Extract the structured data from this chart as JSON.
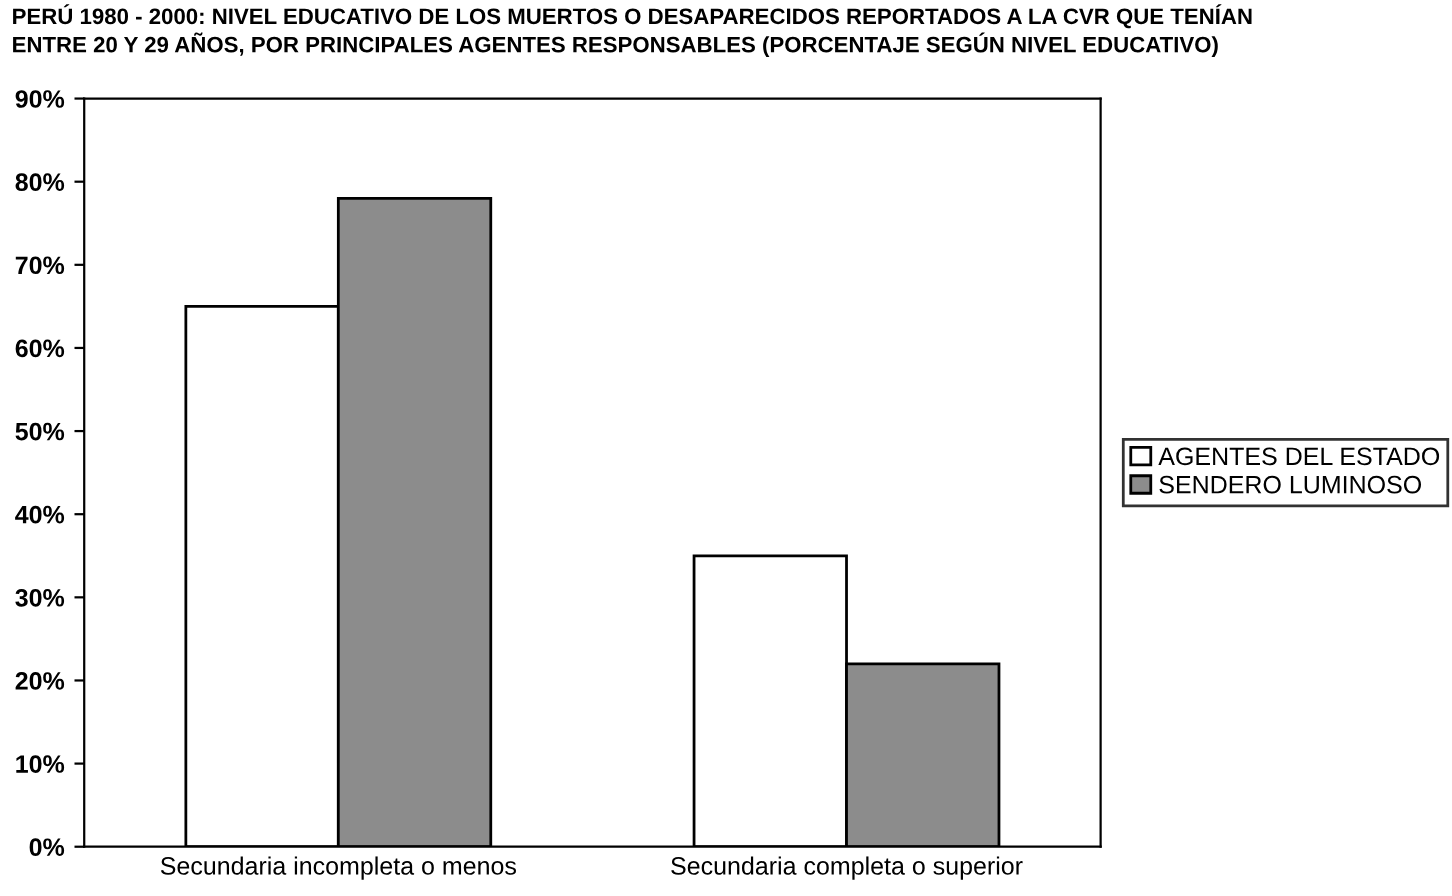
{
  "chart_data": {
    "type": "bar",
    "title": "PERÚ 1980 - 2000: NIVEL EDUCATIVO DE LOS MUERTOS O DESAPARECIDOS REPORTADOS A LA CVR QUE TENÍAN\nENTRE 20 Y 29 AÑOS, POR PRINCIPALES AGENTES RESPONSABLES (PORCENTAJE SEGÚN NIVEL EDUCATIVO)",
    "categories": [
      "Secundaria incompleta o menos",
      "Secundaria completa o superior"
    ],
    "series": [
      {
        "name": "AGENTES DEL ESTADO",
        "color": "#ffffff",
        "values": [
          65,
          35
        ]
      },
      {
        "name": "SENDERO LUMINOSO",
        "color": "#8c8c8c",
        "values": [
          78,
          22
        ]
      }
    ],
    "ylim": [
      0,
      90
    ],
    "yticks": [
      {
        "value": 0,
        "label": "0%"
      },
      {
        "value": 10,
        "label": "10%"
      },
      {
        "value": 20,
        "label": "20%"
      },
      {
        "value": 30,
        "label": "30%"
      },
      {
        "value": 40,
        "label": "40%"
      },
      {
        "value": 50,
        "label": "50%"
      },
      {
        "value": 60,
        "label": "60%"
      },
      {
        "value": 70,
        "label": "70%"
      },
      {
        "value": 80,
        "label": "80%"
      },
      {
        "value": 90,
        "label": "90%"
      }
    ],
    "grid": false,
    "legend": "right"
  }
}
